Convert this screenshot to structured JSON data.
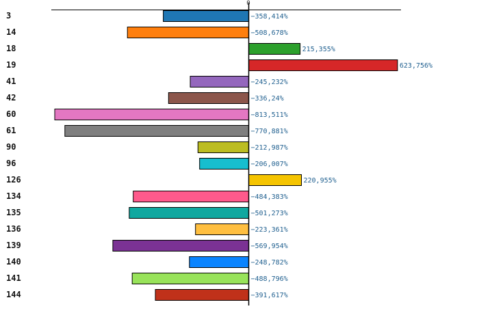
{
  "chart_data": {
    "type": "bar",
    "orientation": "horizontal",
    "title": "",
    "xlabel": "",
    "ylabel": "",
    "xlim": [
      -1000,
      780
    ],
    "zero_tick": "0",
    "categories": [
      "3",
      "14",
      "18",
      "19",
      "41",
      "42",
      "60",
      "61",
      "90",
      "96",
      "126",
      "134",
      "135",
      "136",
      "139",
      "140",
      "141",
      "144"
    ],
    "values": [
      -358.414,
      -508.678,
      215.355,
      623.756,
      -245.232,
      -336.24,
      -813.511,
      -770.881,
      -212.987,
      -206.007,
      220.955,
      -484.383,
      -501.273,
      -223.361,
      -569.954,
      -248.782,
      -488.796,
      -391.617
    ],
    "value_labels": [
      "−358,414%",
      "−508,678%",
      "215,355%",
      "623,756%",
      "−245,232%",
      "−336,24%",
      "−813,511%",
      "−770,881%",
      "−212,987%",
      "−206,007%",
      "220,955%",
      "−484,383%",
      "−501,273%",
      "−223,361%",
      "−569,954%",
      "−248,782%",
      "−488,796%",
      "−391,617%"
    ],
    "colors": [
      "#1f77b4",
      "#ff7f0e",
      "#2ca02c",
      "#d62728",
      "#9467bd",
      "#8c564b",
      "#e377c2",
      "#7f7f7f",
      "#bcbd22",
      "#17becf",
      "#f5c400",
      "#ff5a8c",
      "#10a8a0",
      "#ffbf40",
      "#7b3294",
      "#0a84ff",
      "#98e35a",
      "#c0311a"
    ]
  }
}
